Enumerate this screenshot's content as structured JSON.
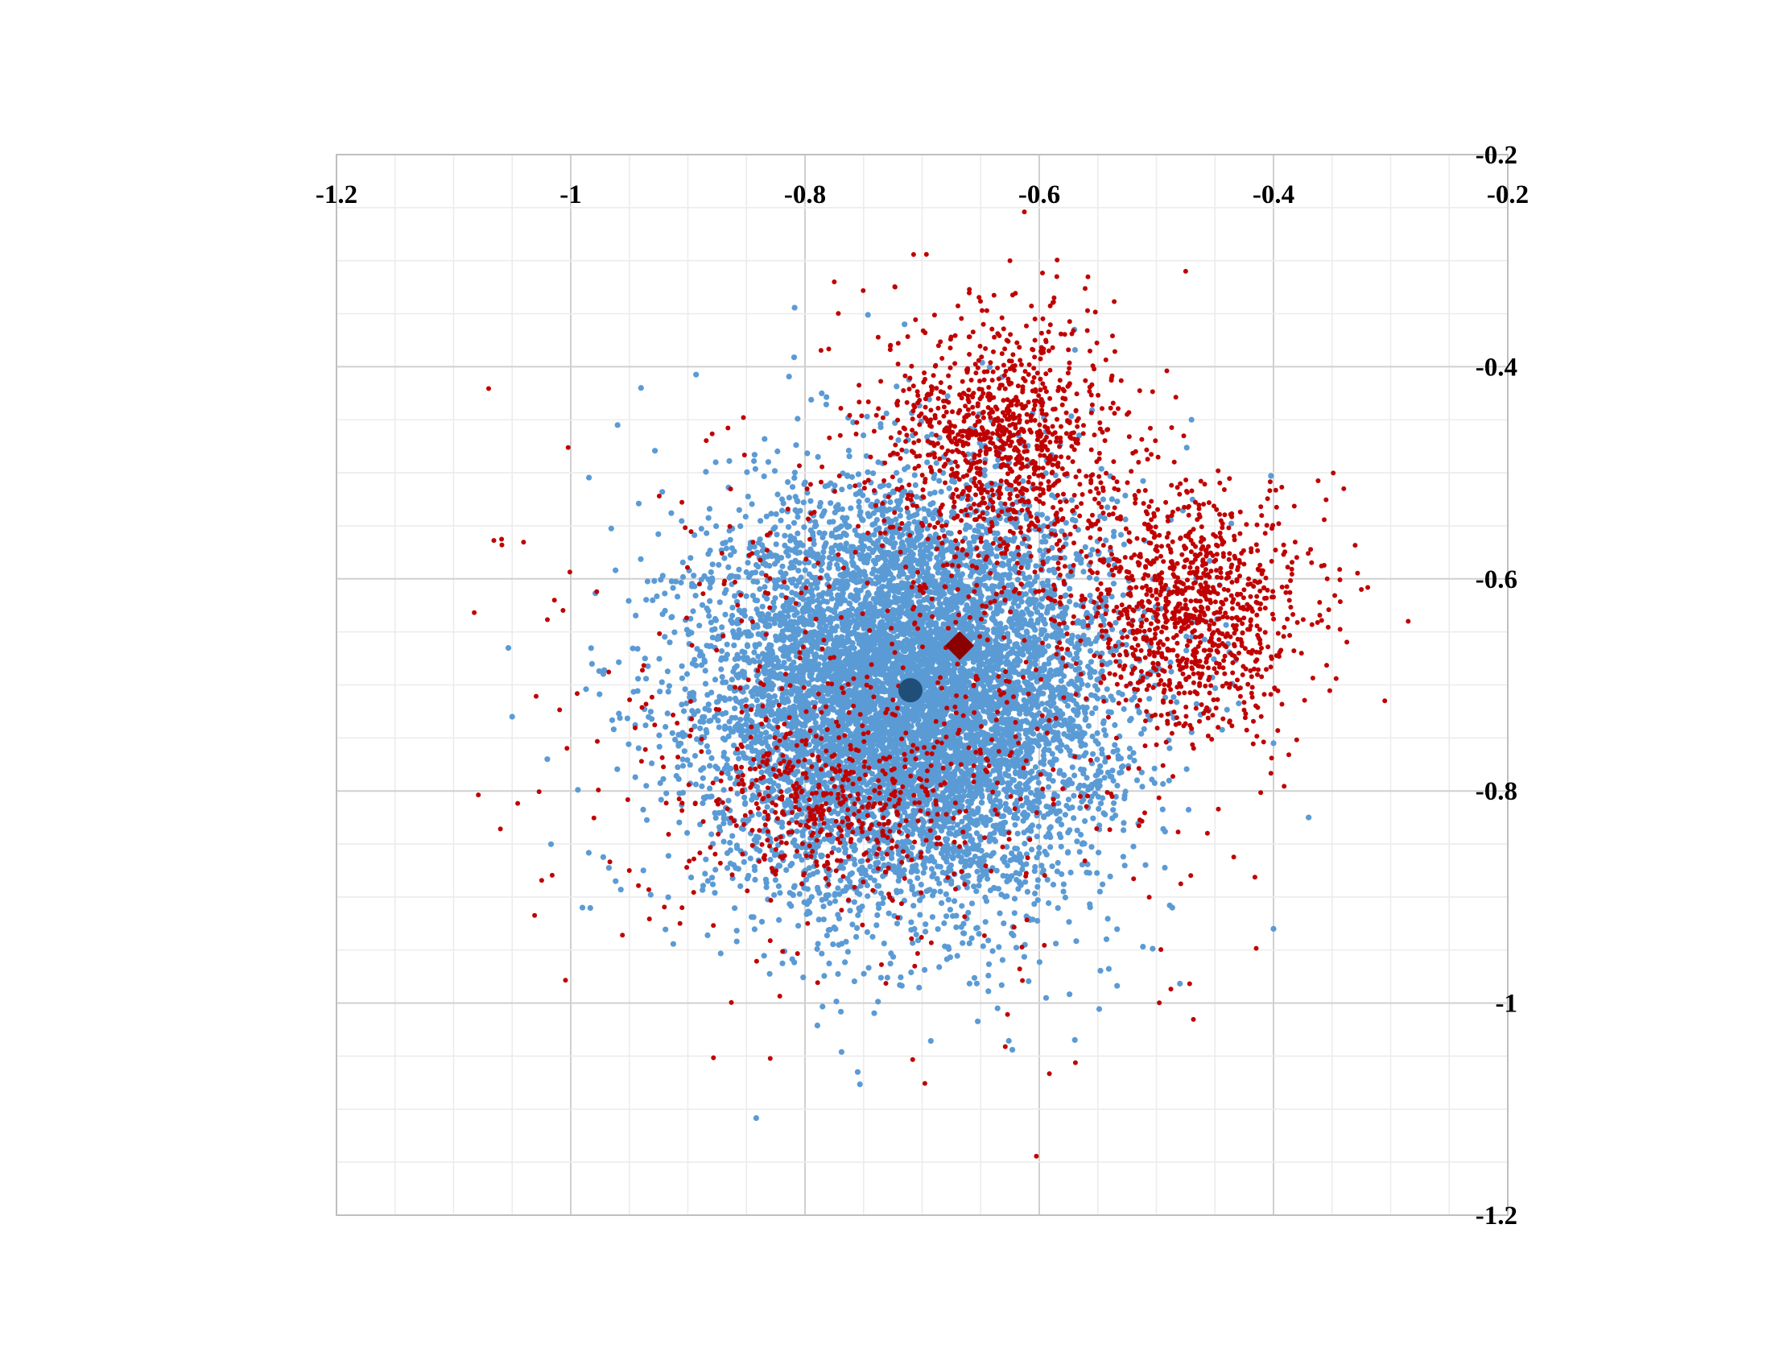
{
  "chart_data": {
    "type": "scatter",
    "title": "",
    "xlabel": "",
    "ylabel": "",
    "xlim": [
      -1.2,
      -0.2
    ],
    "ylim": [
      -1.2,
      -0.2
    ],
    "x_axis_position": "top",
    "y_axis_position": "right",
    "y_inverted": true,
    "grid": true,
    "minor_grid": true,
    "x_ticks": [
      "-1.2",
      "-1",
      "-0.8",
      "-0.6",
      "-0.4",
      "-0.2"
    ],
    "y_ticks": [
      "-0.2",
      "-0.4",
      "-0.6",
      "-0.8",
      "-1",
      "-1.2"
    ],
    "series": [
      {
        "color": "#5b9bd5",
        "marker": "circle",
        "approx_count": 9000,
        "center": [
          -0.71,
          -0.71
        ],
        "spread": [
          0.085,
          0.095
        ],
        "sample_extremes": [
          [
            -1.05,
            -0.73
          ],
          [
            -1.02,
            -0.77
          ],
          [
            -0.94,
            -0.42
          ],
          [
            -0.96,
            -0.455
          ],
          [
            -0.99,
            -0.91
          ],
          [
            -0.755,
            -1.065
          ],
          [
            -0.715,
            -0.36
          ],
          [
            -0.57,
            -0.365
          ],
          [
            -0.4,
            -0.93
          ],
          [
            -0.37,
            -0.825
          ],
          [
            -0.4,
            -0.755
          ],
          [
            -0.47,
            -0.45
          ]
        ]
      },
      {
        "color": "#c00000",
        "marker": "circle",
        "approx_count": 3000,
        "clusters": [
          {
            "center": [
              -0.63,
              -0.47
            ],
            "spread": [
              0.05,
              0.06
            ],
            "weight": 0.34
          },
          {
            "center": [
              -0.47,
              -0.63
            ],
            "spread": [
              0.05,
              0.055
            ],
            "weight": 0.34
          },
          {
            "center": [
              -0.78,
              -0.81
            ],
            "spread": [
              0.06,
              0.04
            ],
            "weight": 0.14
          },
          {
            "center": [
              -0.71,
              -0.71
            ],
            "spread": [
              0.14,
              0.14
            ],
            "weight": 0.18
          }
        ],
        "sample_extremes": [
          [
            -0.625,
            -0.3
          ],
          [
            -0.585,
            -0.315
          ],
          [
            -0.475,
            -0.31
          ],
          [
            -0.775,
            -0.32
          ],
          [
            -0.285,
            -0.64
          ],
          [
            -0.305,
            -0.715
          ],
          [
            -0.325,
            -0.61
          ],
          [
            -0.34,
            -0.515
          ],
          [
            -0.95,
            -0.875
          ],
          [
            -0.905,
            -0.91
          ]
        ]
      }
    ],
    "means": [
      {
        "color": "#1f4e79",
        "marker": "circle",
        "x": -0.71,
        "y": -0.705
      },
      {
        "color": "#8b0000",
        "marker": "diamond",
        "x": -0.668,
        "y": -0.663
      }
    ]
  }
}
